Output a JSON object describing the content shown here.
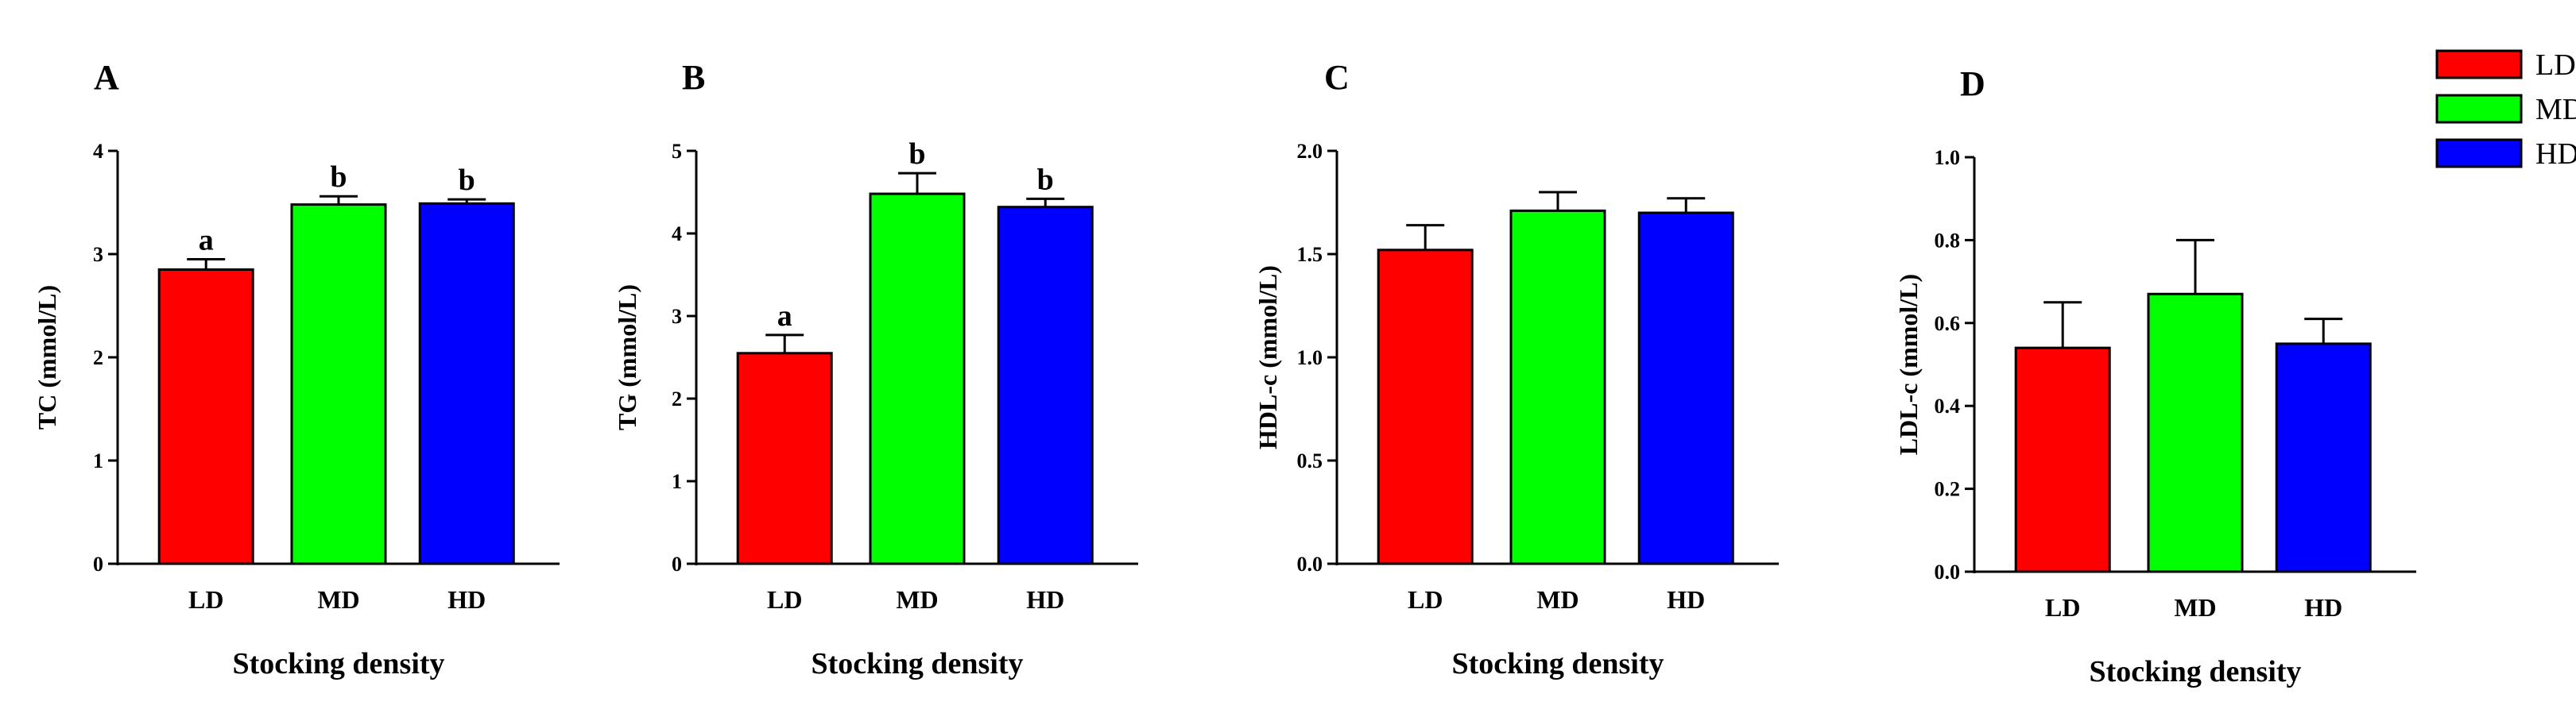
{
  "chart_data": [
    {
      "type": "bar",
      "panel": "A",
      "categories": [
        "LD",
        "MD",
        "HD"
      ],
      "values": [
        2.85,
        3.48,
        3.49
      ],
      "errors": [
        0.1,
        0.08,
        0.04
      ],
      "significance": [
        "a",
        "b",
        "b"
      ],
      "ylabel": "TC (mmol/L)",
      "xlabel": "Stocking density",
      "ylim": [
        0,
        4
      ],
      "yticks": [
        "0",
        "1",
        "2",
        "3",
        "4"
      ],
      "colors": [
        "#ff0000",
        "#00ff00",
        "#0000ff"
      ]
    },
    {
      "type": "bar",
      "panel": "B",
      "categories": [
        "LD",
        "MD",
        "HD"
      ],
      "values": [
        2.55,
        4.48,
        4.32
      ],
      "errors": [
        0.22,
        0.25,
        0.1
      ],
      "significance": [
        "a",
        "b",
        "b"
      ],
      "ylabel": "TG (mmol/L)",
      "xlabel": "Stocking density",
      "ylim": [
        0,
        5
      ],
      "yticks": [
        "0",
        "1",
        "2",
        "3",
        "4",
        "5"
      ],
      "colors": [
        "#ff0000",
        "#00ff00",
        "#0000ff"
      ]
    },
    {
      "type": "bar",
      "panel": "C",
      "categories": [
        "LD",
        "MD",
        "HD"
      ],
      "values": [
        1.52,
        1.71,
        1.7
      ],
      "errors": [
        0.12,
        0.09,
        0.07
      ],
      "significance": [
        "",
        "",
        ""
      ],
      "ylabel": "HDL-c (mmol/L)",
      "xlabel": "Stocking density",
      "ylim": [
        0,
        2.0
      ],
      "yticks": [
        "0.0",
        "0.5",
        "1.0",
        "1.5",
        "2.0"
      ],
      "colors": [
        "#ff0000",
        "#00ff00",
        "#0000ff"
      ]
    },
    {
      "type": "bar",
      "panel": "D",
      "categories": [
        "LD",
        "MD",
        "HD"
      ],
      "values": [
        0.54,
        0.67,
        0.55
      ],
      "errors": [
        0.11,
        0.13,
        0.06
      ],
      "significance": [
        "",
        "",
        ""
      ],
      "ylabel": "LDL-c (mmol/L)",
      "xlabel": "Stocking density",
      "ylim": [
        0,
        1.0
      ],
      "yticks": [
        "0.0",
        "0.2",
        "0.4",
        "0.6",
        "0.8",
        "1.0"
      ],
      "colors": [
        "#ff0000",
        "#00ff00",
        "#0000ff"
      ]
    }
  ],
  "legend": [
    {
      "label": "LD",
      "color": "#ff0000"
    },
    {
      "label": "MD",
      "color": "#00ff00"
    },
    {
      "label": "HD",
      "color": "#0000ff"
    }
  ]
}
